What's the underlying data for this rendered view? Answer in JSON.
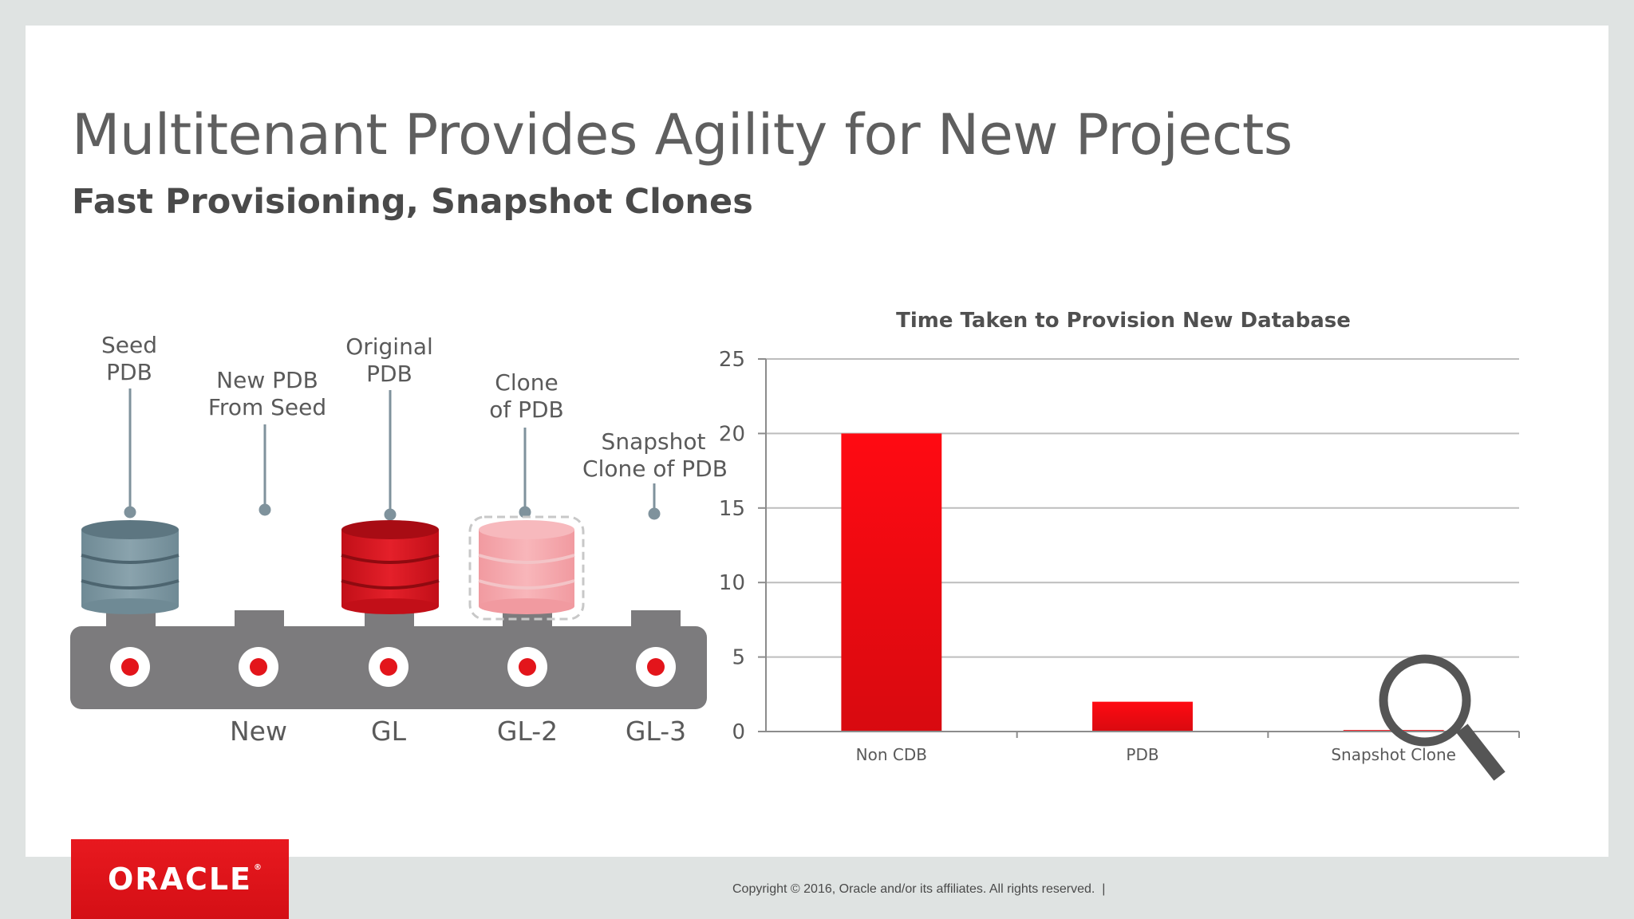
{
  "slide": {
    "title": "Multitenant Provides Agility for New Projects",
    "subtitle": "Fast Provisioning, Snapshot Clones"
  },
  "diagram": {
    "labels": {
      "seed": [
        "Seed",
        "PDB"
      ],
      "new": [
        "New PDB",
        "From Seed"
      ],
      "original": [
        "Original",
        "PDB"
      ],
      "clone": [
        "Clone",
        "of PDB"
      ],
      "snapshot": [
        "Snapshot",
        "Clone of PDB"
      ]
    },
    "slots": [
      "New",
      "GL",
      "GL-2",
      "GL-3"
    ],
    "colors": {
      "seed_db": "#7f9aa5",
      "original_db": "#d9141e",
      "clone_db": "#f6a9ae",
      "rack": "#7c7b7d",
      "dot": "#e3151b"
    }
  },
  "chart_data": {
    "type": "bar",
    "title": "Time Taken to Provision New Database",
    "categories": [
      "Non CDB",
      "PDB",
      "Snapshot Clone"
    ],
    "values": [
      20,
      2,
      0.1
    ],
    "ylim": [
      0,
      25
    ],
    "yticks": [
      0,
      5,
      10,
      15,
      20,
      25
    ],
    "xlabel": "",
    "ylabel": "",
    "grid": true,
    "bar_color": "#ee0a12",
    "annotation": "magnifying-glass over Snapshot Clone bar"
  },
  "footer": {
    "copyright": "Copyright © 2016, Oracle and/or its affiliates. All rights reserved.",
    "separator": "|",
    "logo": "ORACLE",
    "logo_mark": "®"
  }
}
